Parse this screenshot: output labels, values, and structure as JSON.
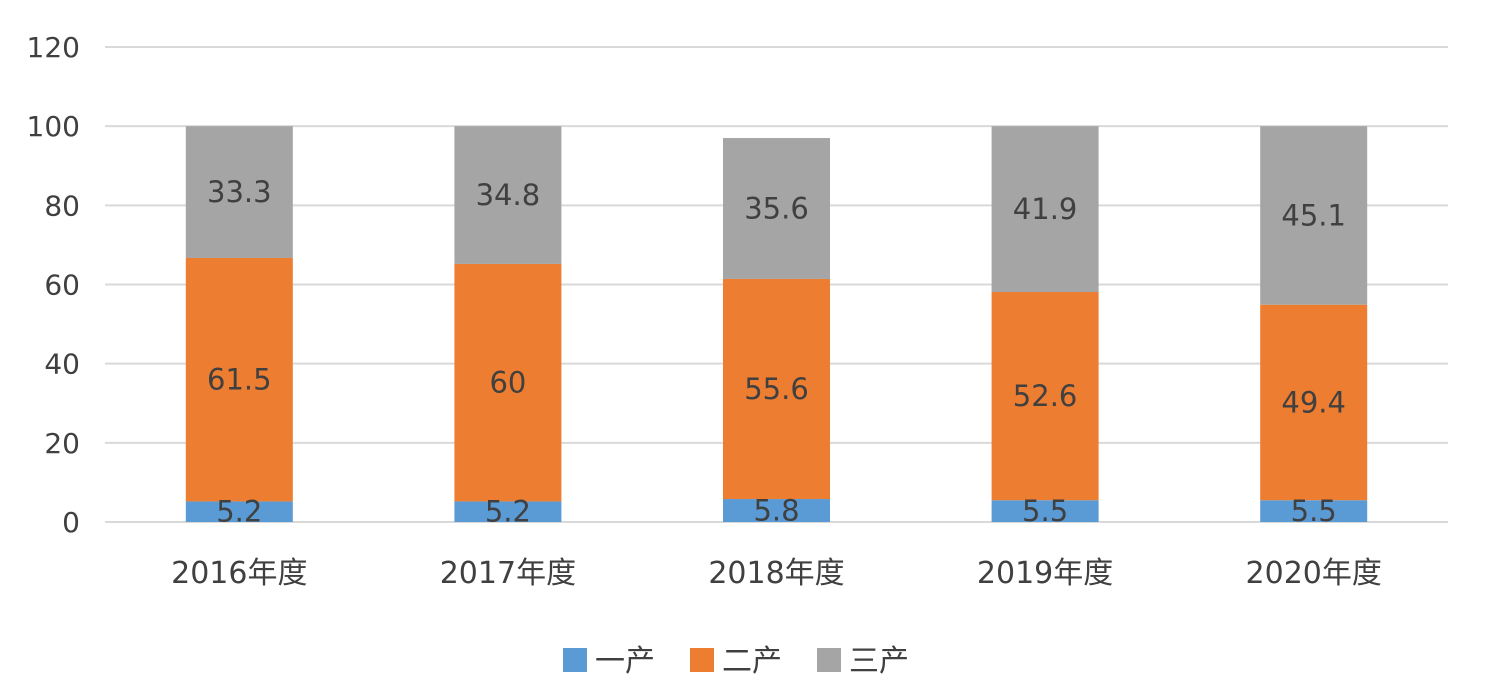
{
  "chart_data": {
    "type": "bar",
    "stacked": true,
    "categories": [
      "2016年度",
      "2017年度",
      "2018年度",
      "2019年度",
      "2020年度"
    ],
    "series": [
      {
        "name": "一产",
        "color": "#5b9bd5",
        "values": [
          5.2,
          5.2,
          5.8,
          5.5,
          5.5
        ]
      },
      {
        "name": "二产",
        "color": "#ed7d31",
        "values": [
          61.5,
          60,
          55.6,
          52.6,
          49.4
        ]
      },
      {
        "name": "三产",
        "color": "#a5a5a5",
        "values": [
          33.3,
          34.8,
          35.6,
          41.9,
          45.1
        ]
      }
    ],
    "labels": [
      [
        "5.2",
        "5.2",
        "5.8",
        "5.5",
        "5.5"
      ],
      [
        "61.5",
        "60",
        "55.6",
        "52.6",
        "49.4"
      ],
      [
        "33.3",
        "34.8",
        "35.6",
        "41.9",
        "45.1"
      ]
    ],
    "y_ticks": [
      "0",
      "20",
      "40",
      "60",
      "80",
      "100",
      "120"
    ],
    "ylim": [
      0,
      120
    ],
    "grid": true,
    "legend": "bottom-center",
    "title": "",
    "xlabel": "",
    "ylabel": ""
  }
}
